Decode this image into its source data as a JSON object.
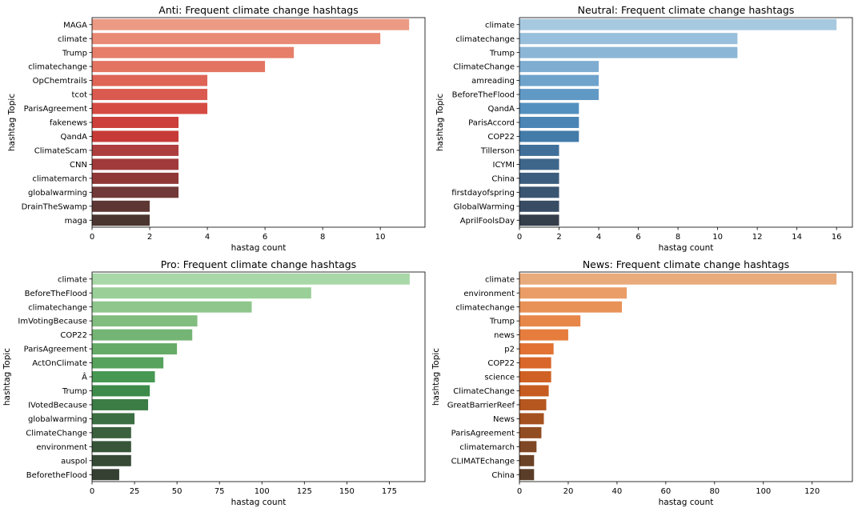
{
  "chart_data": [
    {
      "type": "bar",
      "orientation": "horizontal",
      "title": "Anti: Frequent climate change hashtags",
      "xlabel": "hastag count",
      "ylabel": "hashtag Topic",
      "categories": [
        "MAGA",
        "climate",
        "Trump",
        "climatechange",
        "OpChemtrails",
        "tcot",
        "ParisAgreement",
        "fakenews",
        "QandA",
        "ClimateScam",
        "CNN",
        "climatemarch",
        "globalwarming",
        "DrainTheSwamp",
        "maga"
      ],
      "values": [
        11,
        10,
        7,
        6,
        4,
        4,
        4,
        3,
        3,
        3,
        3,
        3,
        3,
        2,
        2
      ],
      "xlim": [
        0,
        11.55
      ],
      "xticks": [
        0,
        2,
        4,
        6,
        8,
        10
      ],
      "colors": [
        "#ec9a84",
        "#e98a74",
        "#e67e6a",
        "#e27461",
        "#de6456",
        "#da5a4f",
        "#d54b43",
        "#cc3f3a",
        "#c63b37",
        "#ad3e3e",
        "#a13a3a",
        "#8f3836",
        "#713937",
        "#5e3734",
        "#4b3531"
      ]
    },
    {
      "type": "bar",
      "orientation": "horizontal",
      "title": "Neutral: Frequent climate change hashtags",
      "xlabel": "hastag count",
      "ylabel": "hashtag Topic",
      "categories": [
        "climate",
        "climatechange",
        "Trump",
        "ClimateChange",
        "amreading",
        "BeforeTheFlood",
        "QandA",
        "ParisAccord",
        "COP22",
        "Tillerson",
        "ICYMI",
        "China",
        "firstdayofspring",
        "GlobalWarming",
        "AprilFoolsDay"
      ],
      "values": [
        16,
        11,
        11,
        4,
        4,
        4,
        3,
        3,
        3,
        2,
        2,
        2,
        2,
        2,
        2
      ],
      "xlim": [
        0,
        16.8
      ],
      "xticks": [
        0,
        2,
        4,
        6,
        8,
        10,
        12,
        14,
        16
      ],
      "colors": [
        "#a7c9e0",
        "#98bfdb",
        "#8cb6d6",
        "#7eadd1",
        "#6fa3cc",
        "#6199c5",
        "#5490bf",
        "#4a85b6",
        "#437ba9",
        "#40709a",
        "#3e668b",
        "#3c5d7e",
        "#3a5571",
        "#384d64",
        "#343d4a"
      ]
    },
    {
      "type": "bar",
      "orientation": "horizontal",
      "title": "Pro: Frequent climate change hashtags",
      "xlabel": "hastag count",
      "ylabel": "hashtag Topic",
      "categories": [
        "climate",
        "BeforeTheFlood",
        "climatechange",
        "ImVotingBecause",
        "COP22",
        "ParisAgreement",
        "ActOnClimate",
        "Â",
        "Trump",
        "IVotedBecause",
        "globalwarming",
        "ClimateChange",
        "environment",
        "auspol",
        "BeforetheFlood"
      ],
      "values": [
        187,
        129,
        94,
        62,
        59,
        50,
        42,
        37,
        34,
        33,
        25,
        23,
        23,
        23,
        16
      ],
      "xlim": [
        0,
        196
      ],
      "xticks": [
        0,
        25,
        50,
        75,
        100,
        125,
        150,
        175
      ],
      "colors": [
        "#a9d8a8",
        "#9acf98",
        "#8ec68c",
        "#82bd80",
        "#74b474",
        "#66ab68",
        "#57a25c",
        "#479852",
        "#3e8a4a",
        "#3c7c45",
        "#3b6e42",
        "#3a603e",
        "#385539",
        "#374a36",
        "#354033"
      ]
    },
    {
      "type": "bar",
      "orientation": "horizontal",
      "title": "News: Frequent climate change hashtags",
      "xlabel": "hastag count",
      "ylabel": "hashtag Topic",
      "categories": [
        "climate",
        "environment",
        "climatechange",
        "Trump",
        "news",
        "p2",
        "COP22",
        "science",
        "ClimateChange",
        "GreatBarrierReef",
        "News",
        "ParisAgreement",
        "climatemarch",
        "CLIMATEchange",
        "China"
      ],
      "values": [
        130,
        44,
        42,
        25,
        20,
        14,
        13,
        13,
        12,
        11,
        10,
        9,
        7,
        6,
        6
      ],
      "xlim": [
        0,
        136.5
      ],
      "xticks": [
        0,
        20,
        40,
        60,
        80,
        100,
        120
      ],
      "colors": [
        "#e9ab7b",
        "#ea9d66",
        "#e99258",
        "#e8874a",
        "#e67d3d",
        "#e27233",
        "#d9672b",
        "#d06124",
        "#c65c1f",
        "#b5571f",
        "#a4511f",
        "#924c22",
        "#7f4725",
        "#6c4227",
        "#5a3d29"
      ]
    }
  ]
}
